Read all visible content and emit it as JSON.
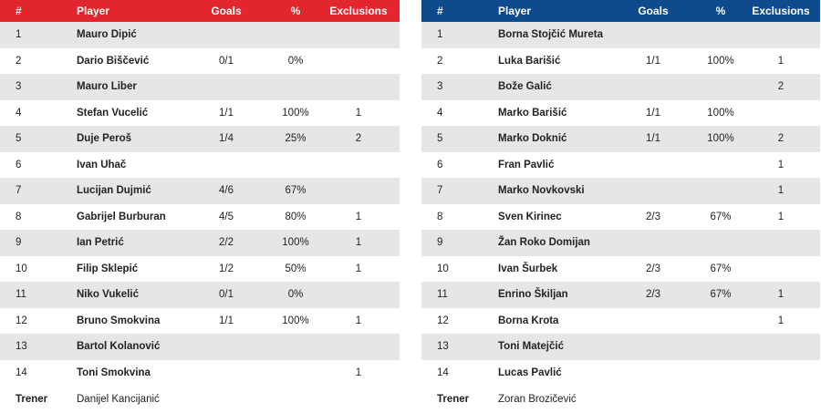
{
  "headers": {
    "num": "#",
    "player": "Player",
    "goals": "Goals",
    "pct": "%",
    "exclusions": "Exclusions"
  },
  "teams": [
    {
      "side": "left",
      "header_color": "#e1262d",
      "players": [
        {
          "num": "1",
          "name": "Mauro Dipić",
          "goals": "",
          "pct": "",
          "exclusions": ""
        },
        {
          "num": "2",
          "name": "Dario Biščević",
          "goals": "0/1",
          "pct": "0%",
          "exclusions": ""
        },
        {
          "num": "3",
          "name": "Mauro Liber",
          "goals": "",
          "pct": "",
          "exclusions": ""
        },
        {
          "num": "4",
          "name": "Stefan Vucelić",
          "goals": "1/1",
          "pct": "100%",
          "exclusions": "1"
        },
        {
          "num": "5",
          "name": "Duje Peroš",
          "goals": "1/4",
          "pct": "25%",
          "exclusions": "2"
        },
        {
          "num": "6",
          "name": "Ivan Uhač",
          "goals": "",
          "pct": "",
          "exclusions": ""
        },
        {
          "num": "7",
          "name": "Lucijan Dujmić",
          "goals": "4/6",
          "pct": "67%",
          "exclusions": ""
        },
        {
          "num": "8",
          "name": "Gabrijel Burburan",
          "goals": "4/5",
          "pct": "80%",
          "exclusions": "1"
        },
        {
          "num": "9",
          "name": "Ian Petrić",
          "goals": "2/2",
          "pct": "100%",
          "exclusions": "1"
        },
        {
          "num": "10",
          "name": "Filip Sklepić",
          "goals": "1/2",
          "pct": "50%",
          "exclusions": "1"
        },
        {
          "num": "11",
          "name": "Niko Vukelić",
          "goals": "0/1",
          "pct": "0%",
          "exclusions": ""
        },
        {
          "num": "12",
          "name": "Bruno Smokvina",
          "goals": "1/1",
          "pct": "100%",
          "exclusions": "1"
        },
        {
          "num": "13",
          "name": "Bartol Kolanović",
          "goals": "",
          "pct": "",
          "exclusions": ""
        },
        {
          "num": "14",
          "name": "Toni Smokvina",
          "goals": "",
          "pct": "",
          "exclusions": "1"
        }
      ],
      "coach_label": "Trener",
      "coach_name": "Danijel Kancijanić"
    },
    {
      "side": "right",
      "header_color": "#0e4a8c",
      "players": [
        {
          "num": "1",
          "name": "Borna Stojčić Mureta",
          "goals": "",
          "pct": "",
          "exclusions": ""
        },
        {
          "num": "2",
          "name": "Luka Barišić",
          "goals": "1/1",
          "pct": "100%",
          "exclusions": "1"
        },
        {
          "num": "3",
          "name": "Bože Galić",
          "goals": "",
          "pct": "",
          "exclusions": "2"
        },
        {
          "num": "4",
          "name": "Marko Barišić",
          "goals": "1/1",
          "pct": "100%",
          "exclusions": ""
        },
        {
          "num": "5",
          "name": "Marko Doknić",
          "goals": "1/1",
          "pct": "100%",
          "exclusions": "2"
        },
        {
          "num": "6",
          "name": "Fran Pavlić",
          "goals": "",
          "pct": "",
          "exclusions": "1"
        },
        {
          "num": "7",
          "name": "Marko Novkovski",
          "goals": "",
          "pct": "",
          "exclusions": "1"
        },
        {
          "num": "8",
          "name": "Sven Kirinec",
          "goals": "2/3",
          "pct": "67%",
          "exclusions": "1"
        },
        {
          "num": "9",
          "name": "Žan Roko Domijan",
          "goals": "",
          "pct": "",
          "exclusions": ""
        },
        {
          "num": "10",
          "name": "Ivan Šurbek",
          "goals": "2/3",
          "pct": "67%",
          "exclusions": ""
        },
        {
          "num": "11",
          "name": "Enrino Škiljan",
          "goals": "2/3",
          "pct": "67%",
          "exclusions": "1"
        },
        {
          "num": "12",
          "name": "Borna Krota",
          "goals": "",
          "pct": "",
          "exclusions": "1"
        },
        {
          "num": "13",
          "name": "Toni Matejčić",
          "goals": "",
          "pct": "",
          "exclusions": ""
        },
        {
          "num": "14",
          "name": "Lucas Pavlić",
          "goals": "",
          "pct": "",
          "exclusions": ""
        }
      ],
      "coach_label": "Trener",
      "coach_name": "Zoran Brozičević"
    }
  ]
}
